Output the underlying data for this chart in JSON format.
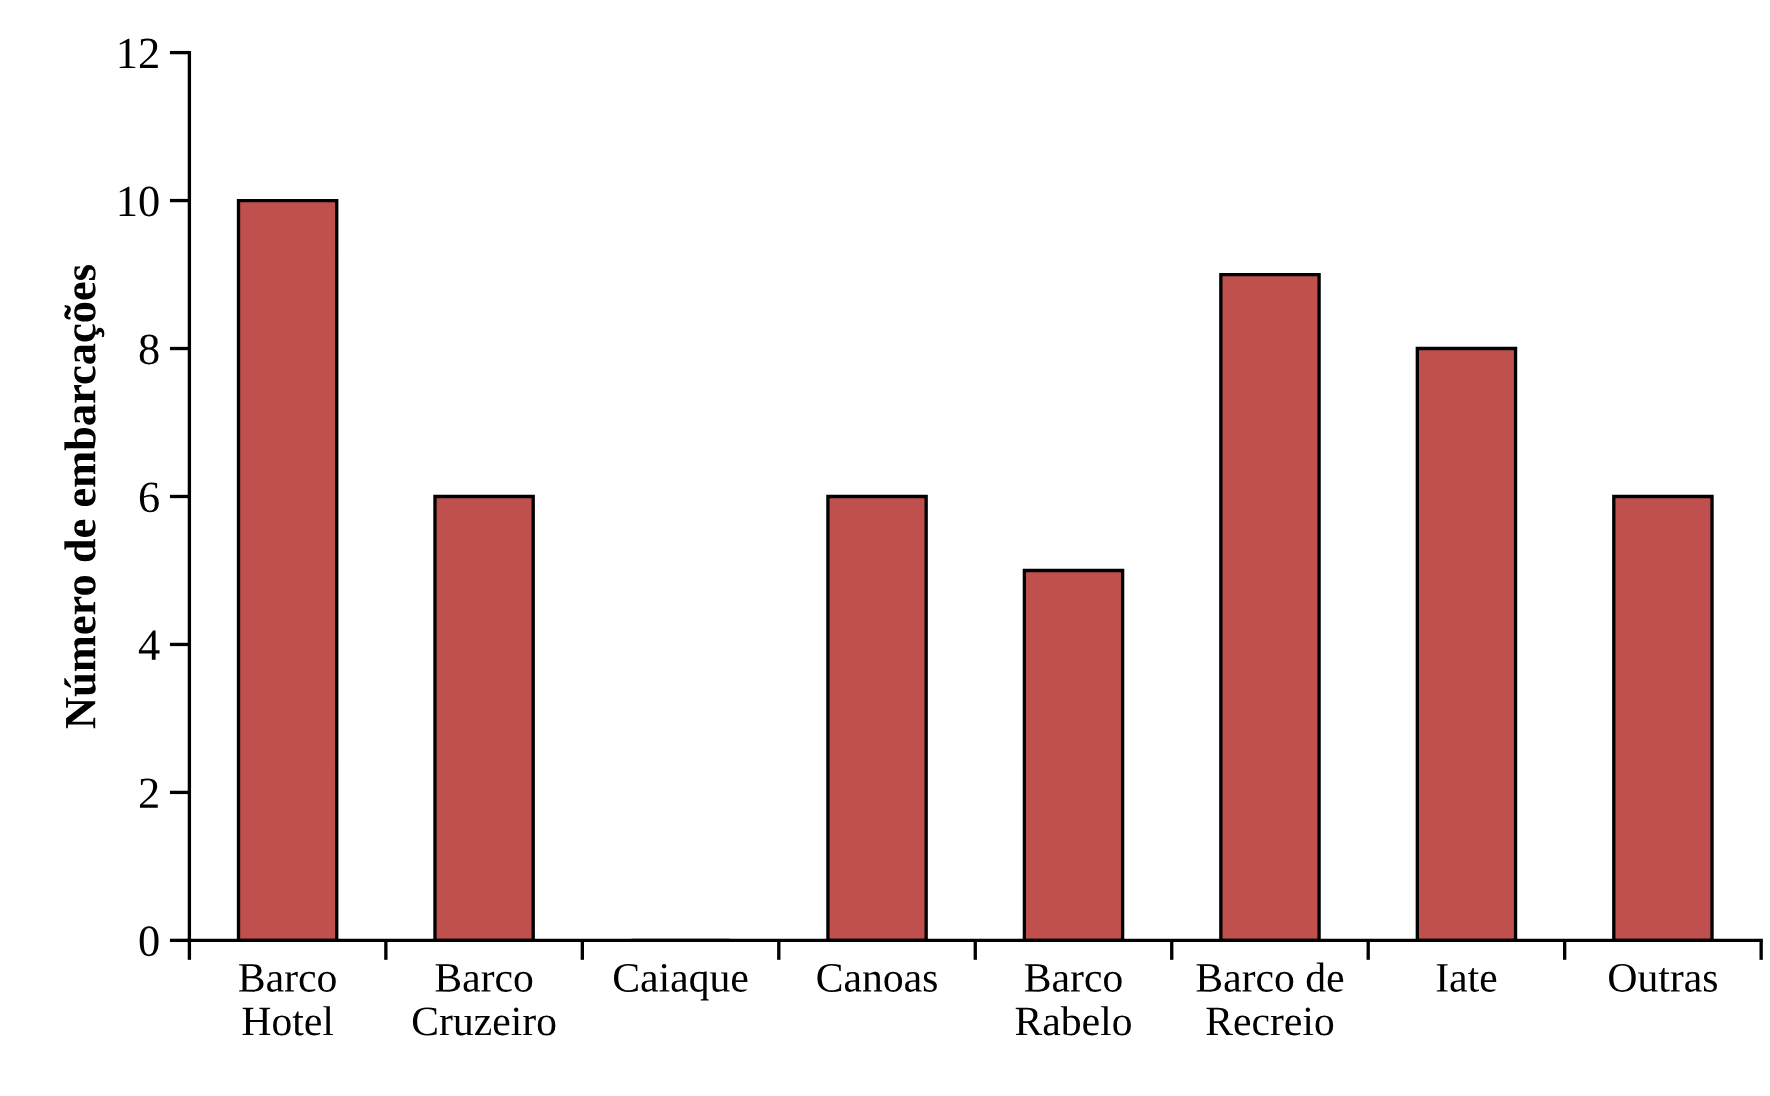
{
  "chart_data": {
    "type": "bar",
    "ylabel": "Número de embarcações",
    "categories": [
      "Barco\nHotel",
      "Barco\nCruzeiro",
      "Caiaque",
      "Canoas",
      "Barco\nRabelo",
      "Barco de\nRecreio",
      "Iate",
      "Outras"
    ],
    "values": [
      10,
      6,
      0,
      6,
      5,
      9,
      8,
      6
    ],
    "color": "#c0504d",
    "ylim": [
      0,
      12
    ],
    "yticks": [
      0,
      2,
      4,
      6,
      8,
      10,
      12
    ],
    "grid": false,
    "legend": false
  }
}
